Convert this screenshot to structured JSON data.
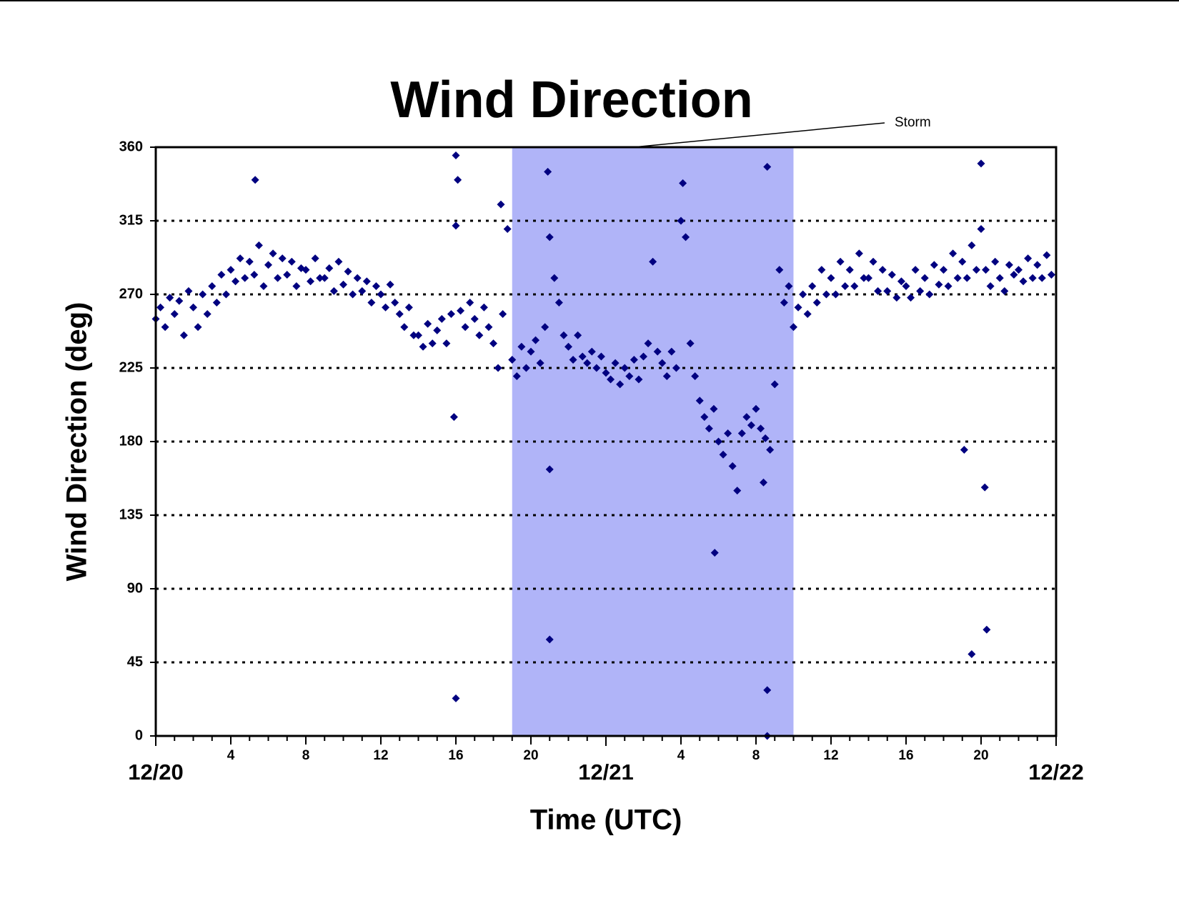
{
  "chart_data": {
    "type": "scatter",
    "title": "Wind Direction",
    "xlabel": "Time (UTC)",
    "ylabel": "Wind Direction (deg)",
    "color": "#000080",
    "grid": true,
    "ylim": [
      0,
      360
    ],
    "yticks": [
      0,
      45,
      90,
      135,
      180,
      225,
      270,
      315,
      360
    ],
    "xlim": [
      0,
      48
    ],
    "xticks": [
      4,
      8,
      12,
      16,
      20,
      {
        "value": 28,
        "label": "4"
      },
      {
        "value": 32,
        "label": "8"
      },
      {
        "value": 36,
        "label": "12"
      },
      {
        "value": 40,
        "label": "16"
      },
      {
        "value": 44,
        "label": "20"
      }
    ],
    "xdate_ticks": [
      {
        "value": 0,
        "label": "12/20"
      },
      {
        "value": 24,
        "label": "12/21"
      },
      {
        "value": 48,
        "label": "12/22"
      }
    ],
    "xminor_ticks": [
      0,
      1,
      2,
      3,
      4,
      5,
      6,
      7,
      8,
      9,
      10,
      11,
      12,
      13,
      14,
      15,
      16,
      17,
      18,
      19,
      20,
      21,
      22,
      23,
      24,
      25,
      26,
      27,
      28,
      29,
      30,
      31,
      32,
      33,
      34,
      35,
      36,
      37,
      38,
      39,
      40,
      41,
      42,
      43,
      44,
      45,
      46,
      47,
      48
    ],
    "storm": {
      "label": "Storm",
      "xrange": [
        19,
        34
      ],
      "color": "#b0b4f8"
    },
    "x": [
      0,
      0.25,
      0.5,
      0.75,
      1,
      1.25,
      1.5,
      1.75,
      2,
      2.25,
      2.5,
      2.75,
      3,
      3.25,
      3.5,
      3.75,
      4,
      4.25,
      4.5,
      4.75,
      5,
      5.25,
      5.5,
      5.75,
      6,
      6.25,
      6.5,
      6.75,
      7,
      7.25,
      7.5,
      7.75,
      8,
      8.25,
      8.5,
      8.75,
      9,
      9.25,
      9.5,
      9.75,
      10,
      10.25,
      10.5,
      10.75,
      11,
      11.25,
      11.5,
      11.75,
      12,
      12.25,
      12.5,
      12.75,
      13,
      13.25,
      13.5,
      13.75,
      14,
      14.25,
      14.5,
      14.75,
      15,
      15.25,
      15.5,
      15.75,
      16,
      16.25,
      16.5,
      16.75,
      17,
      17.25,
      17.5,
      17.75,
      18,
      18.25,
      18.5,
      18.75,
      19,
      19.25,
      19.5,
      19.75,
      20,
      20.25,
      20.5,
      20.75,
      21,
      21.25,
      21.5,
      21.75,
      22,
      22.25,
      22.5,
      22.75,
      23,
      23.25,
      23.5,
      23.75,
      24,
      24.25,
      24.5,
      24.75,
      25,
      25.25,
      25.5,
      25.75,
      26,
      26.25,
      26.5,
      26.75,
      27,
      27.25,
      27.5,
      27.75,
      28,
      28.25,
      28.5,
      28.75,
      29,
      29.25,
      29.5,
      29.75,
      30,
      30.25,
      30.5,
      30.75,
      31,
      31.25,
      31.5,
      31.75,
      32,
      32.25,
      32.5,
      32.75,
      33,
      33.25,
      33.5,
      33.75,
      34,
      34.25,
      34.5,
      34.75,
      35,
      35.25,
      35.5,
      35.75,
      36,
      36.25,
      36.5,
      36.75,
      37,
      37.25,
      37.5,
      37.75,
      38,
      38.25,
      38.5,
      38.75,
      39,
      39.25,
      39.5,
      39.75,
      40,
      40.25,
      40.5,
      40.75,
      41,
      41.25,
      41.5,
      41.75,
      42,
      42.25,
      42.5,
      42.75,
      43,
      43.25,
      43.5,
      43.75,
      44,
      44.25,
      44.5,
      44.75,
      45,
      45.25,
      45.5,
      45.75,
      46,
      46.25,
      46.5,
      46.75,
      47,
      47.25,
      47.5,
      47.75,
      16,
      21,
      21,
      29.8,
      32.6,
      32.6,
      44.3,
      43.5,
      44.2,
      43.1,
      15.9,
      5.3,
      16,
      44,
      32.6,
      32.4,
      16.1,
      20.9,
      28.1,
      18.4
    ],
    "y": [
      255,
      262,
      250,
      268,
      258,
      266,
      245,
      272,
      262,
      250,
      270,
      258,
      275,
      265,
      282,
      270,
      285,
      278,
      292,
      280,
      290,
      282,
      300,
      275,
      288,
      295,
      280,
      292,
      282,
      290,
      275,
      286,
      285,
      278,
      292,
      280,
      280,
      286,
      272,
      290,
      276,
      284,
      270,
      280,
      272,
      278,
      265,
      275,
      270,
      262,
      276,
      265,
      258,
      250,
      262,
      245,
      245,
      238,
      252,
      240,
      248,
      255,
      240,
      258,
      312,
      260,
      250,
      265,
      255,
      245,
      262,
      250,
      240,
      225,
      258,
      310,
      230,
      220,
      238,
      225,
      235,
      242,
      228,
      250,
      305,
      280,
      265,
      245,
      238,
      230,
      245,
      232,
      228,
      235,
      225,
      232,
      222,
      218,
      228,
      215,
      225,
      220,
      230,
      218,
      232,
      240,
      290,
      235,
      228,
      220,
      235,
      225,
      315,
      305,
      240,
      220,
      205,
      195,
      188,
      200,
      180,
      172,
      185,
      165,
      150,
      185,
      195,
      190,
      200,
      188,
      182,
      175,
      215,
      285,
      265,
      275,
      250,
      262,
      270,
      258,
      275,
      265,
      285,
      270,
      280,
      270,
      290,
      275,
      285,
      275,
      295,
      280,
      280,
      290,
      272,
      285,
      272,
      282,
      268,
      278,
      275,
      268,
      285,
      272,
      280,
      270,
      288,
      276,
      285,
      275,
      295,
      280,
      290,
      280,
      300,
      285,
      310,
      285,
      275,
      290,
      280,
      272,
      288,
      282,
      285,
      278,
      292,
      280,
      288,
      280,
      294,
      282,
      23,
      59,
      163,
      112,
      28,
      0,
      65,
      50,
      152,
      175,
      195,
      340,
      355,
      350,
      348,
      155,
      340,
      345,
      338,
      325
    ]
  }
}
